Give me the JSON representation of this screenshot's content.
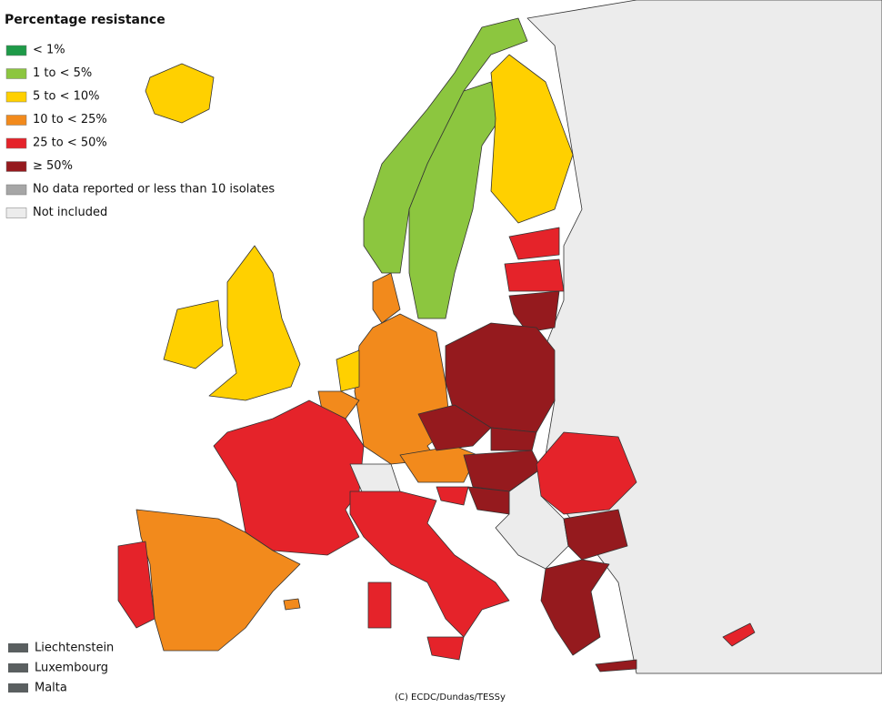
{
  "legend": {
    "title": "Percentage resistance",
    "items": [
      {
        "label": "< 1%",
        "color": "#1e9a48"
      },
      {
        "label": "1 to < 5%",
        "color": "#8cc63f"
      },
      {
        "label": "5 to < 10%",
        "color": "#ffd000"
      },
      {
        "label": "10 to < 25%",
        "color": "#f28a1c"
      },
      {
        "label": "25 to < 50%",
        "color": "#e5232a"
      },
      {
        "label": "≥ 50%",
        "color": "#951a1e"
      },
      {
        "label": "No data reported or less than 10 isolates",
        "color": "#a6a6a6"
      },
      {
        "label": "Not included",
        "color": "#ececec"
      }
    ]
  },
  "small_countries": [
    {
      "label": "Liechtenstein",
      "color": "#5a5f60"
    },
    {
      "label": "Luxembourg",
      "color": "#5a5f60"
    },
    {
      "label": "Malta",
      "color": "#5a5f60"
    }
  ],
  "credit": "(C) ECDC/Dundas/TESSy"
}
